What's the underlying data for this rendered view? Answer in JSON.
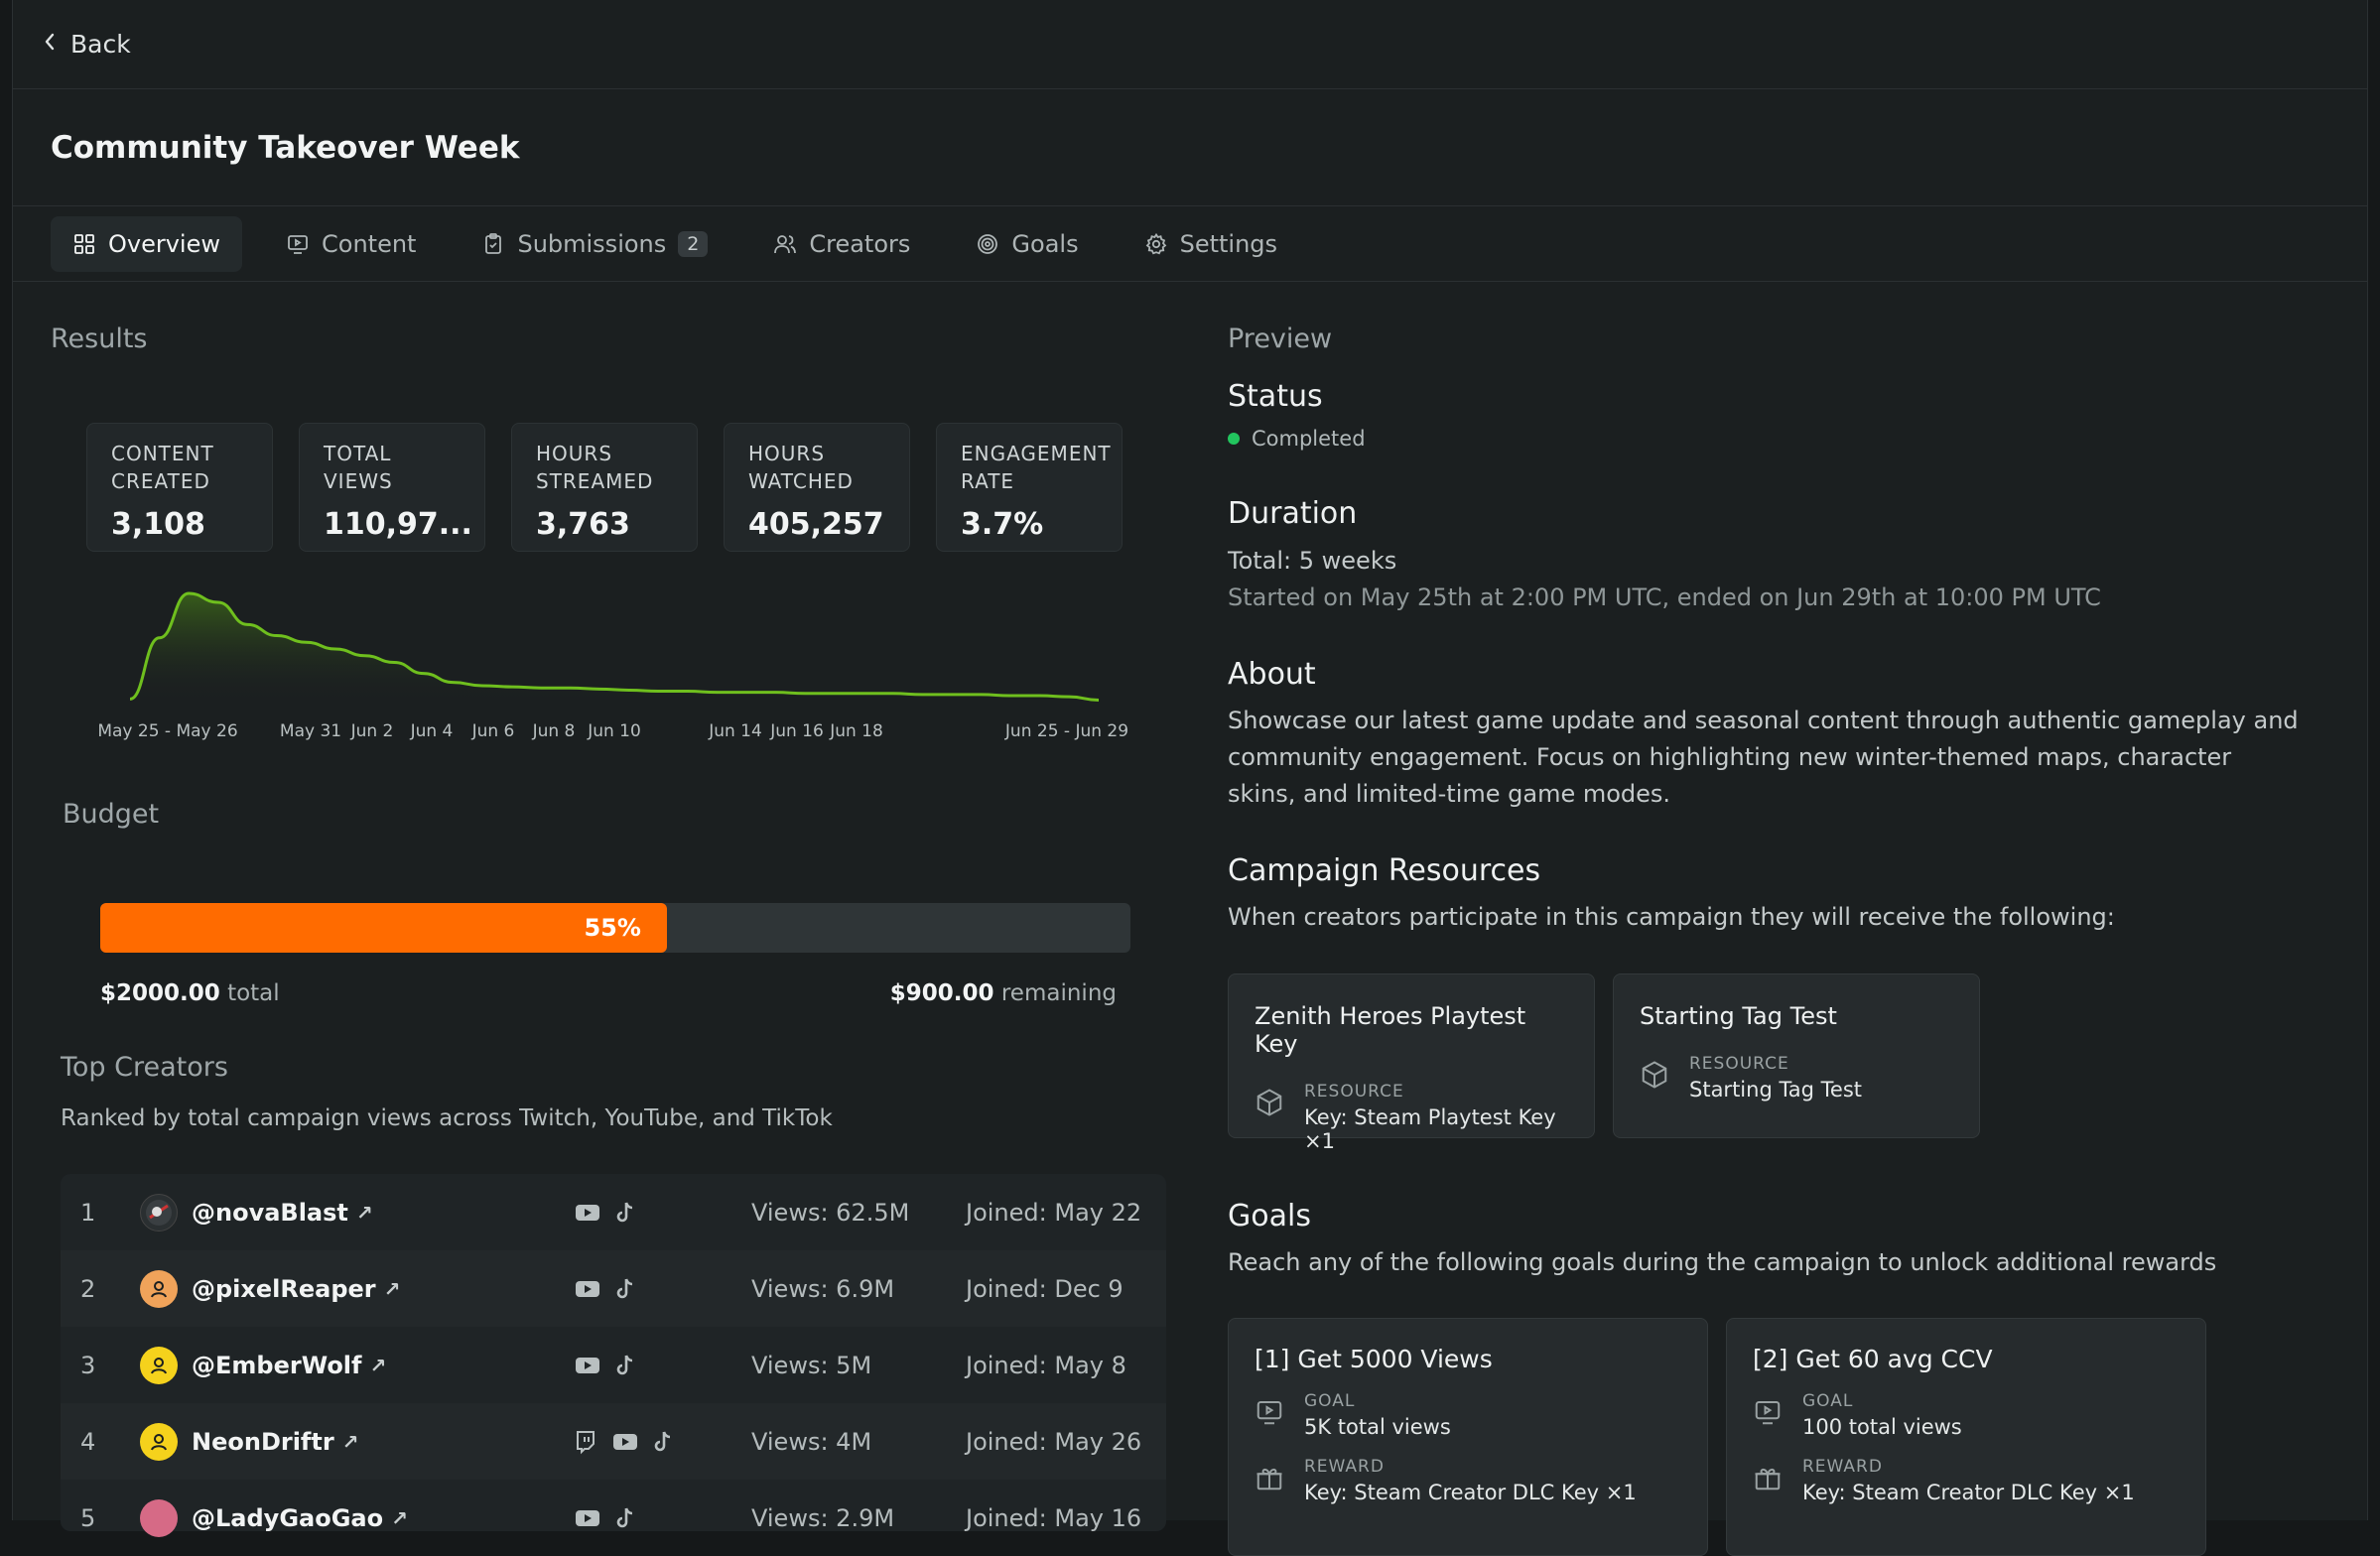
{
  "nav": {
    "back_label": "Back"
  },
  "campaign": {
    "title": "Community Takeover Week"
  },
  "tabs": [
    {
      "label": "Overview",
      "icon": "grid-icon",
      "active": true
    },
    {
      "label": "Content",
      "icon": "monitor-play-icon"
    },
    {
      "label": "Submissions",
      "icon": "clipboard-icon",
      "badge": "2"
    },
    {
      "label": "Creators",
      "icon": "users-icon"
    },
    {
      "label": "Goals",
      "icon": "target-icon"
    },
    {
      "label": "Settings",
      "icon": "gear-icon"
    }
  ],
  "results": {
    "heading": "Results",
    "stats": [
      {
        "label": "CONTENT CREATED",
        "value": "3,108"
      },
      {
        "label": "TOTAL VIEWS",
        "value": "110,97..."
      },
      {
        "label": "HOURS STREAMED",
        "value": "3,763"
      },
      {
        "label": "HOURS WATCHED",
        "value": "405,257"
      },
      {
        "label": "ENGAGEMENT RATE",
        "value": "3.7%"
      }
    ]
  },
  "chart_data": {
    "type": "area",
    "x_tick_labels": [
      "May 25 - May 26",
      "May 31",
      "Jun 2",
      "Jun 4",
      "Jun 6",
      "Jun 8",
      "Jun 10",
      "Jun 14",
      "Jun 16",
      "Jun 18",
      "Jun 25 - Jun 29"
    ],
    "series": [
      {
        "values": [
          5,
          60,
          100,
          92,
          72,
          62,
          56,
          50,
          44,
          38,
          28,
          20,
          17,
          16,
          15,
          15,
          14,
          13,
          12,
          12,
          11,
          11,
          11,
          10,
          10,
          10,
          10,
          9,
          9,
          9,
          8,
          8,
          7,
          4
        ]
      }
    ],
    "color": "#6fbf1e"
  },
  "budget": {
    "heading": "Budget",
    "percent_label": "55%",
    "percent": 55,
    "total_amount": "$2000.00",
    "total_suffix": "total",
    "remaining_amount": "$900.00",
    "remaining_suffix": "remaining",
    "fill_color": "#ff6b00"
  },
  "top_creators": {
    "heading": "Top Creators",
    "subtitle": "Ranked by total campaign views across Twitch, YouTube, and TikTok",
    "rows": [
      {
        "rank": "1",
        "handle": "@novaBlast",
        "platforms": [
          "youtube-icon",
          "tiktok-icon"
        ],
        "views": "Views: 62.5M",
        "joined": "Joined: May 22",
        "avatar_color": "#2a2f31"
      },
      {
        "rank": "2",
        "handle": "@pixelReaper",
        "platforms": [
          "youtube-icon",
          "tiktok-icon"
        ],
        "views": "Views: 6.9M",
        "joined": "Joined: Dec 9",
        "avatar_color": "#f0a35a"
      },
      {
        "rank": "3",
        "handle": "@EmberWolf",
        "platforms": [
          "youtube-icon",
          "tiktok-icon"
        ],
        "views": "Views: 5M",
        "joined": "Joined: May 8",
        "avatar_color": "#f5d21c"
      },
      {
        "rank": "4",
        "handle": "NeonDriftr",
        "platforms": [
          "twitch-icon",
          "youtube-icon",
          "tiktok-icon"
        ],
        "views": "Views: 4M",
        "joined": "Joined: May 26",
        "avatar_color": "#f5d21c"
      },
      {
        "rank": "5",
        "handle": "@LadyGaoGao",
        "platforms": [
          "youtube-icon",
          "tiktok-icon"
        ],
        "views": "Views: 2.9M",
        "joined": "Joined: May 16",
        "avatar_color": "#d66a86"
      }
    ]
  },
  "preview": {
    "heading": "Preview",
    "status_heading": "Status",
    "status": "Completed",
    "status_color": "#22c55e",
    "duration_heading": "Duration",
    "duration_total": "Total: 5 weeks",
    "duration_detail": "Started on May 25th at 2:00 PM UTC, ended on Jun 29th at 10:00 PM UTC",
    "about_heading": "About",
    "about_lines": [
      "Showcase our latest game update and seasonal content through authentic gameplay and",
      "community engagement. Focus on highlighting new winter-themed maps, character",
      "skins, and limited-time game modes."
    ],
    "resources_heading": "Campaign Resources",
    "resources_subtitle": "When creators participate in this campaign they will receive the following:",
    "resources": [
      {
        "title": "Zenith Heroes Playtest Key",
        "kind": "RESOURCE",
        "value": "Key: Steam Playtest Key ×1"
      },
      {
        "title": "Starting Tag Test",
        "kind": "RESOURCE",
        "value": "Starting Tag Test"
      }
    ],
    "goals_heading": "Goals",
    "goals_subtitle": "Reach any of the following goals during the campaign to unlock additional rewards",
    "goals": [
      {
        "title": "[1] Get 5000 Views",
        "goal_kind": "GOAL",
        "goal_value": "5K total views",
        "reward_kind": "REWARD",
        "reward_value": "Key: Steam Creator DLC Key ×1"
      },
      {
        "title": "[2] Get 60 avg CCV",
        "goal_kind": "GOAL",
        "goal_value": "100 total views",
        "reward_kind": "REWARD",
        "reward_value": "Key: Steam Creator DLC Key ×1"
      }
    ]
  }
}
